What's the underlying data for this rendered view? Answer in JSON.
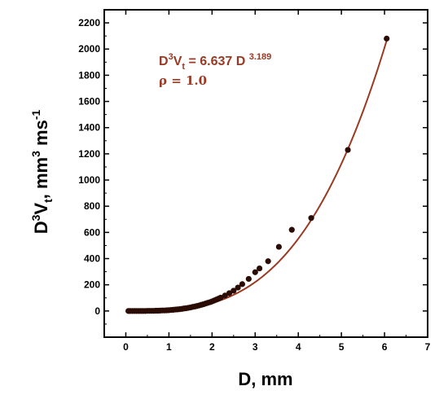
{
  "chart_data": {
    "type": "scatter",
    "xlabel": "D, mm",
    "ylabel_parts": {
      "base": "D",
      "sup1": "3",
      "mid": "V",
      "sub": "t",
      "unit": ", mm",
      "sup2": "3",
      "unit2": " ms",
      "sup3": "-1"
    },
    "xlim": [
      -0.5,
      7
    ],
    "ylim": [
      -200,
      2300
    ],
    "xticks": [
      0,
      1,
      2,
      3,
      4,
      5,
      6,
      7
    ],
    "yticks": [
      0,
      200,
      400,
      600,
      800,
      1000,
      1200,
      1400,
      1600,
      1800,
      2000,
      2200
    ],
    "annotation": {
      "equation": {
        "lhs_base": "D",
        "lhs_sup": "3",
        "lhs_mid": "V",
        "lhs_sub": "t",
        "rhs": " = 6.637 D ",
        "exponent": "3.189"
      },
      "rho": "ρ = 1.0"
    },
    "fit": {
      "coefficient": 6.637,
      "exponent": 3.189
    },
    "colors": {
      "curve": "#9a3a24",
      "points": "#2a0c05",
      "text": "#9a3a24"
    },
    "series": [
      {
        "x": [
          0.06,
          0.1,
          0.15,
          0.2,
          0.25,
          0.3,
          0.35,
          0.4,
          0.45,
          0.5,
          0.55,
          0.6,
          0.65,
          0.7,
          0.75,
          0.8,
          0.85,
          0.9,
          0.95,
          1.0,
          1.05,
          1.1,
          1.15,
          1.2,
          1.25,
          1.3,
          1.35,
          1.4,
          1.45,
          1.5,
          1.55,
          1.6,
          1.65,
          1.7,
          1.75,
          1.8,
          1.85,
          1.9,
          1.95,
          2.0,
          2.05,
          2.1,
          2.15,
          2.2,
          2.3,
          2.4,
          2.5,
          2.6,
          2.7,
          2.85,
          3.0,
          3.1,
          3.3,
          3.55,
          3.85,
          4.3,
          5.15,
          6.05
        ],
        "y": [
          0,
          0,
          0,
          0,
          0,
          0,
          0,
          0,
          0,
          1,
          1,
          1,
          1,
          2,
          2,
          3,
          4,
          4,
          5,
          6,
          8,
          9,
          11,
          12,
          14,
          16,
          19,
          21,
          24,
          27,
          31,
          34,
          38,
          42,
          47,
          51,
          57,
          62,
          67,
          73,
          80,
          87,
          94,
          102,
          118,
          136,
          155,
          179,
          205,
          245,
          296,
          325,
          380,
          490,
          620,
          710,
          1230,
          2080
        ]
      }
    ]
  }
}
